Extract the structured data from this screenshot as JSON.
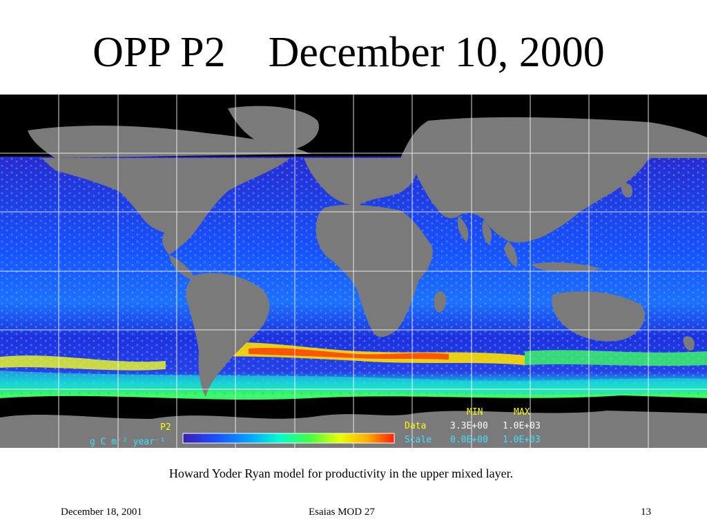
{
  "slide": {
    "title": "OPP P2    December 10, 2000",
    "caption": "Howard Yoder Ryan model for productivity in the upper mixed layer.",
    "footer": {
      "date": "December 18, 2001",
      "center": "Esaias  MOD 27",
      "page_number": "13"
    }
  },
  "map": {
    "legend": {
      "product": "P2",
      "units": "g C m⁻² year⁻¹",
      "min_header": "MIN",
      "max_header": "MAX",
      "data_label": "Data",
      "data_min": "3.3E+00",
      "data_max": "1.0E+03",
      "scale_label": "Scale",
      "scale_min": "0.0E+00",
      "scale_max": "1.0E+03",
      "colorbar_stops": [
        "#3a1fb0",
        "#1d4cff",
        "#00a8ff",
        "#00ffd0",
        "#40ff40",
        "#e8ff00",
        "#ffb000",
        "#ff2000"
      ]
    },
    "colors": {
      "land": "#7a7a7a",
      "no_data": "#000000",
      "ocean_low": "#1f30d8",
      "ocean_mid": "#1a70ff",
      "ocean_high": "#20d0ff",
      "grid": "#ffffff",
      "legend_yellow": "#ffff00",
      "legend_cyan": "#3fe0ff",
      "legend_white": "#ffffff"
    }
  }
}
